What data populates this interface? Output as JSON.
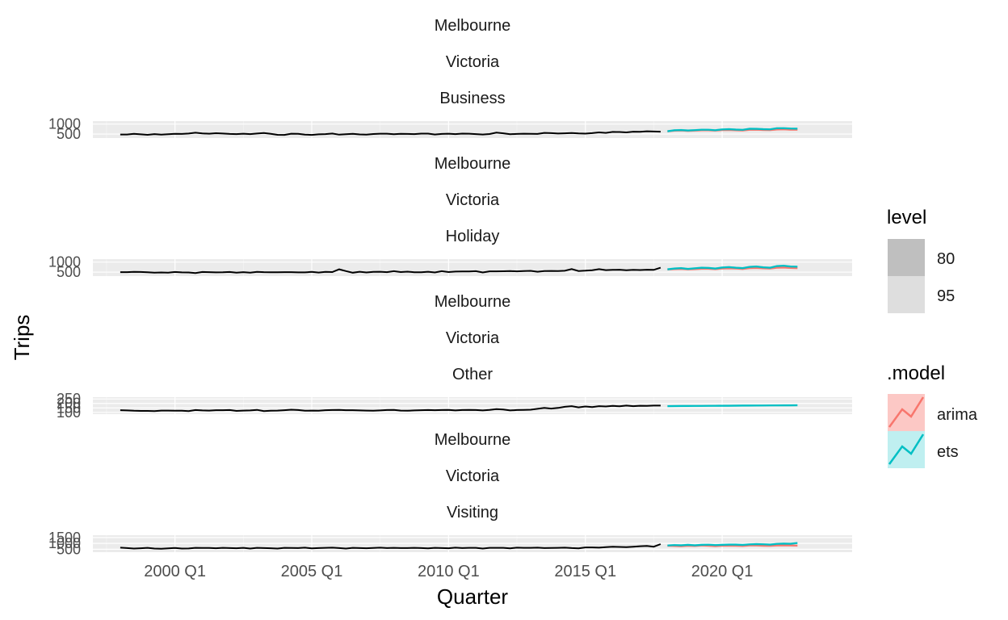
{
  "chart_data": {
    "type": "line",
    "xlabel": "Quarter",
    "ylabel": "Trips",
    "x_ticks": [
      "2000 Q1",
      "2005 Q1",
      "2010 Q1",
      "2015 Q1",
      "2020 Q1"
    ],
    "history_range": [
      "1998 Q1",
      "2017 Q4"
    ],
    "forecast_range": [
      "2018 Q1",
      "2022 Q4"
    ],
    "legend": {
      "level_title": "level",
      "levels": [
        "80",
        "95"
      ],
      "model_title": ".model",
      "models": [
        {
          "name": "arima",
          "color": "#F8766D"
        },
        {
          "name": "ets",
          "color": "#00BFC4"
        }
      ]
    },
    "panels": [
      {
        "strips": [
          "Melbourne",
          "Victoria",
          "Business"
        ],
        "y_ticks": [
          {
            "label": "1000",
            "value": 1000
          },
          {
            "label": "500",
            "value": 500
          }
        ],
        "history": [
          480,
          478,
          510,
          486,
          460,
          500,
          470,
          492,
          514,
          508,
          526,
          568,
          530,
          520,
          542,
          526,
          508,
          498,
          520,
          500,
          528,
          552,
          512,
          462,
          458,
          520,
          510,
          474,
          458,
          488,
          500,
          526,
          468,
          490,
          512,
          482,
          476,
          504,
          518,
          520,
          494,
          512,
          506,
          498,
          522,
          522,
          478,
          508,
          518,
          500,
          522,
          518,
          498,
          478,
          504,
          570,
          540,
          494,
          508,
          520,
          516,
          506,
          560,
          546,
          528,
          538,
          550,
          530,
          522,
          548,
          582,
          560,
          608,
          602,
          584,
          618,
          610,
          640,
          628,
          620
        ],
        "forecast_ets": [
          640,
          690,
          702,
          680,
          696,
          718,
          716,
          694,
          734,
          744,
          726,
          714,
          764,
          762,
          744,
          736,
          792,
          794,
          776,
          770
        ],
        "forecast_arima": [
          636,
          670,
          682,
          660,
          672,
          690,
          690,
          672,
          700,
          706,
          690,
          682,
          714,
          720,
          704,
          698,
          730,
          736,
          720,
          716
        ]
      },
      {
        "strips": [
          "Melbourne",
          "Victoria",
          "Holiday"
        ],
        "y_ticks": [
          {
            "label": "1000",
            "value": 1000
          },
          {
            "label": "500",
            "value": 500
          }
        ],
        "history": [
          500,
          500,
          510,
          508,
          496,
          476,
          482,
          474,
          508,
          488,
          484,
          452,
          508,
          500,
          488,
          492,
          508,
          472,
          500,
          474,
          510,
          500,
          494,
          490,
          500,
          500,
          486,
          488,
          510,
          478,
          510,
          504,
          640,
          552,
          472,
          518,
          484,
          516,
          520,
          498,
          548,
          502,
          524,
          494,
          492,
          518,
          484,
          546,
          502,
          526,
          536,
          530,
          546,
          484,
          540,
          540,
          544,
          552,
          538,
          554,
          564,
          520,
          550,
          560,
          552,
          568,
          654,
          556,
          570,
          594,
          650,
          600,
          610,
          620,
          596,
          610,
          604,
          620,
          612,
          720
        ],
        "forecast_ets": [
          640,
          680,
          700,
          660,
          692,
          720,
          710,
          680,
          730,
          750,
          720,
          700,
          760,
          780,
          740,
          720,
          800,
          820,
          780,
          770
        ],
        "forecast_arima": [
          630,
          650,
          660,
          640,
          650,
          670,
          670,
          650,
          680,
          690,
          680,
          660,
          700,
          710,
          690,
          680,
          720,
          730,
          710,
          700
        ]
      },
      {
        "strips": [
          "Melbourne",
          "Victoria",
          "Other"
        ],
        "y_ticks": [
          {
            "label": "250",
            "value": 250
          },
          {
            "label": "200",
            "value": 200
          },
          {
            "label": "150",
            "value": 150
          },
          {
            "label": "100",
            "value": 100
          }
        ],
        "history": [
          124,
          122,
          118,
          116,
          116,
          114,
          120,
          120,
          118,
          118,
          114,
          126,
          122,
          120,
          124,
          124,
          126,
          116,
          120,
          122,
          128,
          114,
          118,
          120,
          124,
          130,
          126,
          118,
          120,
          118,
          124,
          126,
          128,
          124,
          124,
          122,
          120,
          118,
          122,
          126,
          128,
          120,
          118,
          122,
          124,
          126,
          124,
          126,
          128,
          122,
          126,
          128,
          126,
          122,
          128,
          136,
          132,
          122,
          126,
          128,
          130,
          140,
          150,
          142,
          150,
          162,
          170,
          156,
          166,
          160,
          170,
          166,
          172,
          168,
          176,
          170,
          174,
          172,
          176,
          176
        ],
        "forecast_ets": [
          170,
          170.5,
          171,
          171.5,
          172,
          172.5,
          173,
          173.5,
          174,
          174.5,
          175,
          175.5,
          176,
          176.5,
          177,
          177.5,
          178,
          178.5,
          179,
          179.5
        ],
        "forecast_arima": []
      },
      {
        "strips": [
          "Melbourne",
          "Victoria",
          "Visiting"
        ],
        "y_ticks": [
          {
            "label": "1500",
            "value": 1500
          },
          {
            "label": "1000",
            "value": 1000
          },
          {
            "label": "500",
            "value": 500
          }
        ],
        "history": [
          640,
          600,
          560,
          590,
          620,
          560,
          540,
          580,
          610,
          560,
          570,
          620,
          610,
          610,
          590,
          620,
          600,
          590,
          620,
          560,
          620,
          600,
          590,
          560,
          620,
          610,
          600,
          640,
          580,
          600,
          620,
          640,
          600,
          560,
          620,
          600,
          590,
          610,
          640,
          600,
          620,
          600,
          600,
          620,
          600,
          580,
          620,
          600,
          590,
          640,
          600,
          620,
          620,
          560,
          620,
          620,
          620,
          580,
          640,
          620,
          620,
          640,
          600,
          610,
          620,
          640,
          600,
          580,
          660,
          660,
          640,
          680,
          720,
          700,
          680,
          720,
          760,
          780,
          720,
          940
        ],
        "forecast_ets": [
          820,
          860,
          840,
          880,
          840,
          880,
          890,
          860,
          880,
          900,
          900,
          870,
          920,
          940,
          930,
          900,
          960,
          980,
          970,
          1040
        ],
        "forecast_arima": [
          800,
          780,
          760,
          800,
          780,
          820,
          800,
          770,
          800,
          810,
          800,
          780,
          830,
          820,
          800,
          790,
          820,
          840,
          820,
          810
        ]
      }
    ]
  }
}
